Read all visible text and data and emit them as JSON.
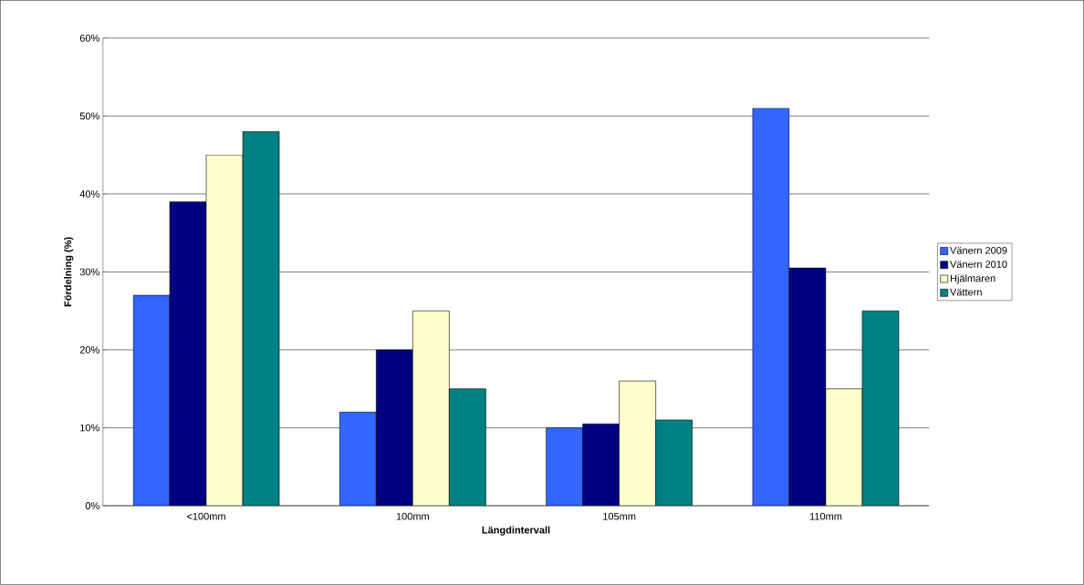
{
  "chart_data": {
    "type": "bar",
    "xlabel": "Längdintervall",
    "ylabel": "Fördelning (%)",
    "categories": [
      "<100mm",
      "100mm",
      "105mm",
      "110mm"
    ],
    "series": [
      {
        "name": "Vänern 2009",
        "color": "#3366ff",
        "values": [
          27,
          12,
          10,
          51
        ]
      },
      {
        "name": "Vänern 2010",
        "color": "#000080",
        "values": [
          39,
          20,
          10.5,
          30.5
        ]
      },
      {
        "name": "Hjälmaren",
        "color": "#ffffcc",
        "values": [
          45,
          25,
          16,
          15
        ]
      },
      {
        "name": "Vättern",
        "color": "#008080",
        "values": [
          48,
          15,
          11,
          25
        ]
      }
    ],
    "ylim": [
      0,
      60
    ],
    "yticks": [
      {
        "value": 0,
        "label": "0%"
      },
      {
        "value": 10,
        "label": "10%"
      },
      {
        "value": 20,
        "label": "20%"
      },
      {
        "value": 30,
        "label": "30%"
      },
      {
        "value": 40,
        "label": "40%"
      },
      {
        "value": 50,
        "label": "50%"
      },
      {
        "value": 60,
        "label": "60%"
      }
    ],
    "grid": "y",
    "legend": "right"
  }
}
